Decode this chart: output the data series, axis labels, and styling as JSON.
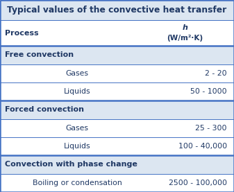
{
  "title": "Typical values of the convective heat transfer",
  "title_fontsize": 8.8,
  "col_header_left": "Process",
  "header_color": "#dce6f1",
  "section_color": "#dce6f1",
  "data_row_color": "#ffffff",
  "border_color": "#4472c4",
  "text_color": "#1f3864",
  "title_bg": "#dce6f1",
  "col_split": 0.58,
  "rows": [
    {
      "label": "Free convection",
      "value": "",
      "is_section": true
    },
    {
      "label": "Gases",
      "value": "2 - 20",
      "is_section": false
    },
    {
      "label": "Liquids",
      "value": "50 - 1000",
      "is_section": false
    },
    {
      "label": "Forced convection",
      "value": "",
      "is_section": true
    },
    {
      "label": "Gases",
      "value": "25 - 300",
      "is_section": false
    },
    {
      "label": "Liquids",
      "value": "100 - 40,000",
      "is_section": false
    },
    {
      "label": "Convection with phase change",
      "value": "",
      "is_section": true
    },
    {
      "label": "Boiling or condensation",
      "value": "2500 - 100,000",
      "is_section": false
    }
  ],
  "fig_width": 3.37,
  "fig_height": 2.77,
  "dpi": 100,
  "lw_thick": 1.8,
  "lw_thin": 0.7
}
